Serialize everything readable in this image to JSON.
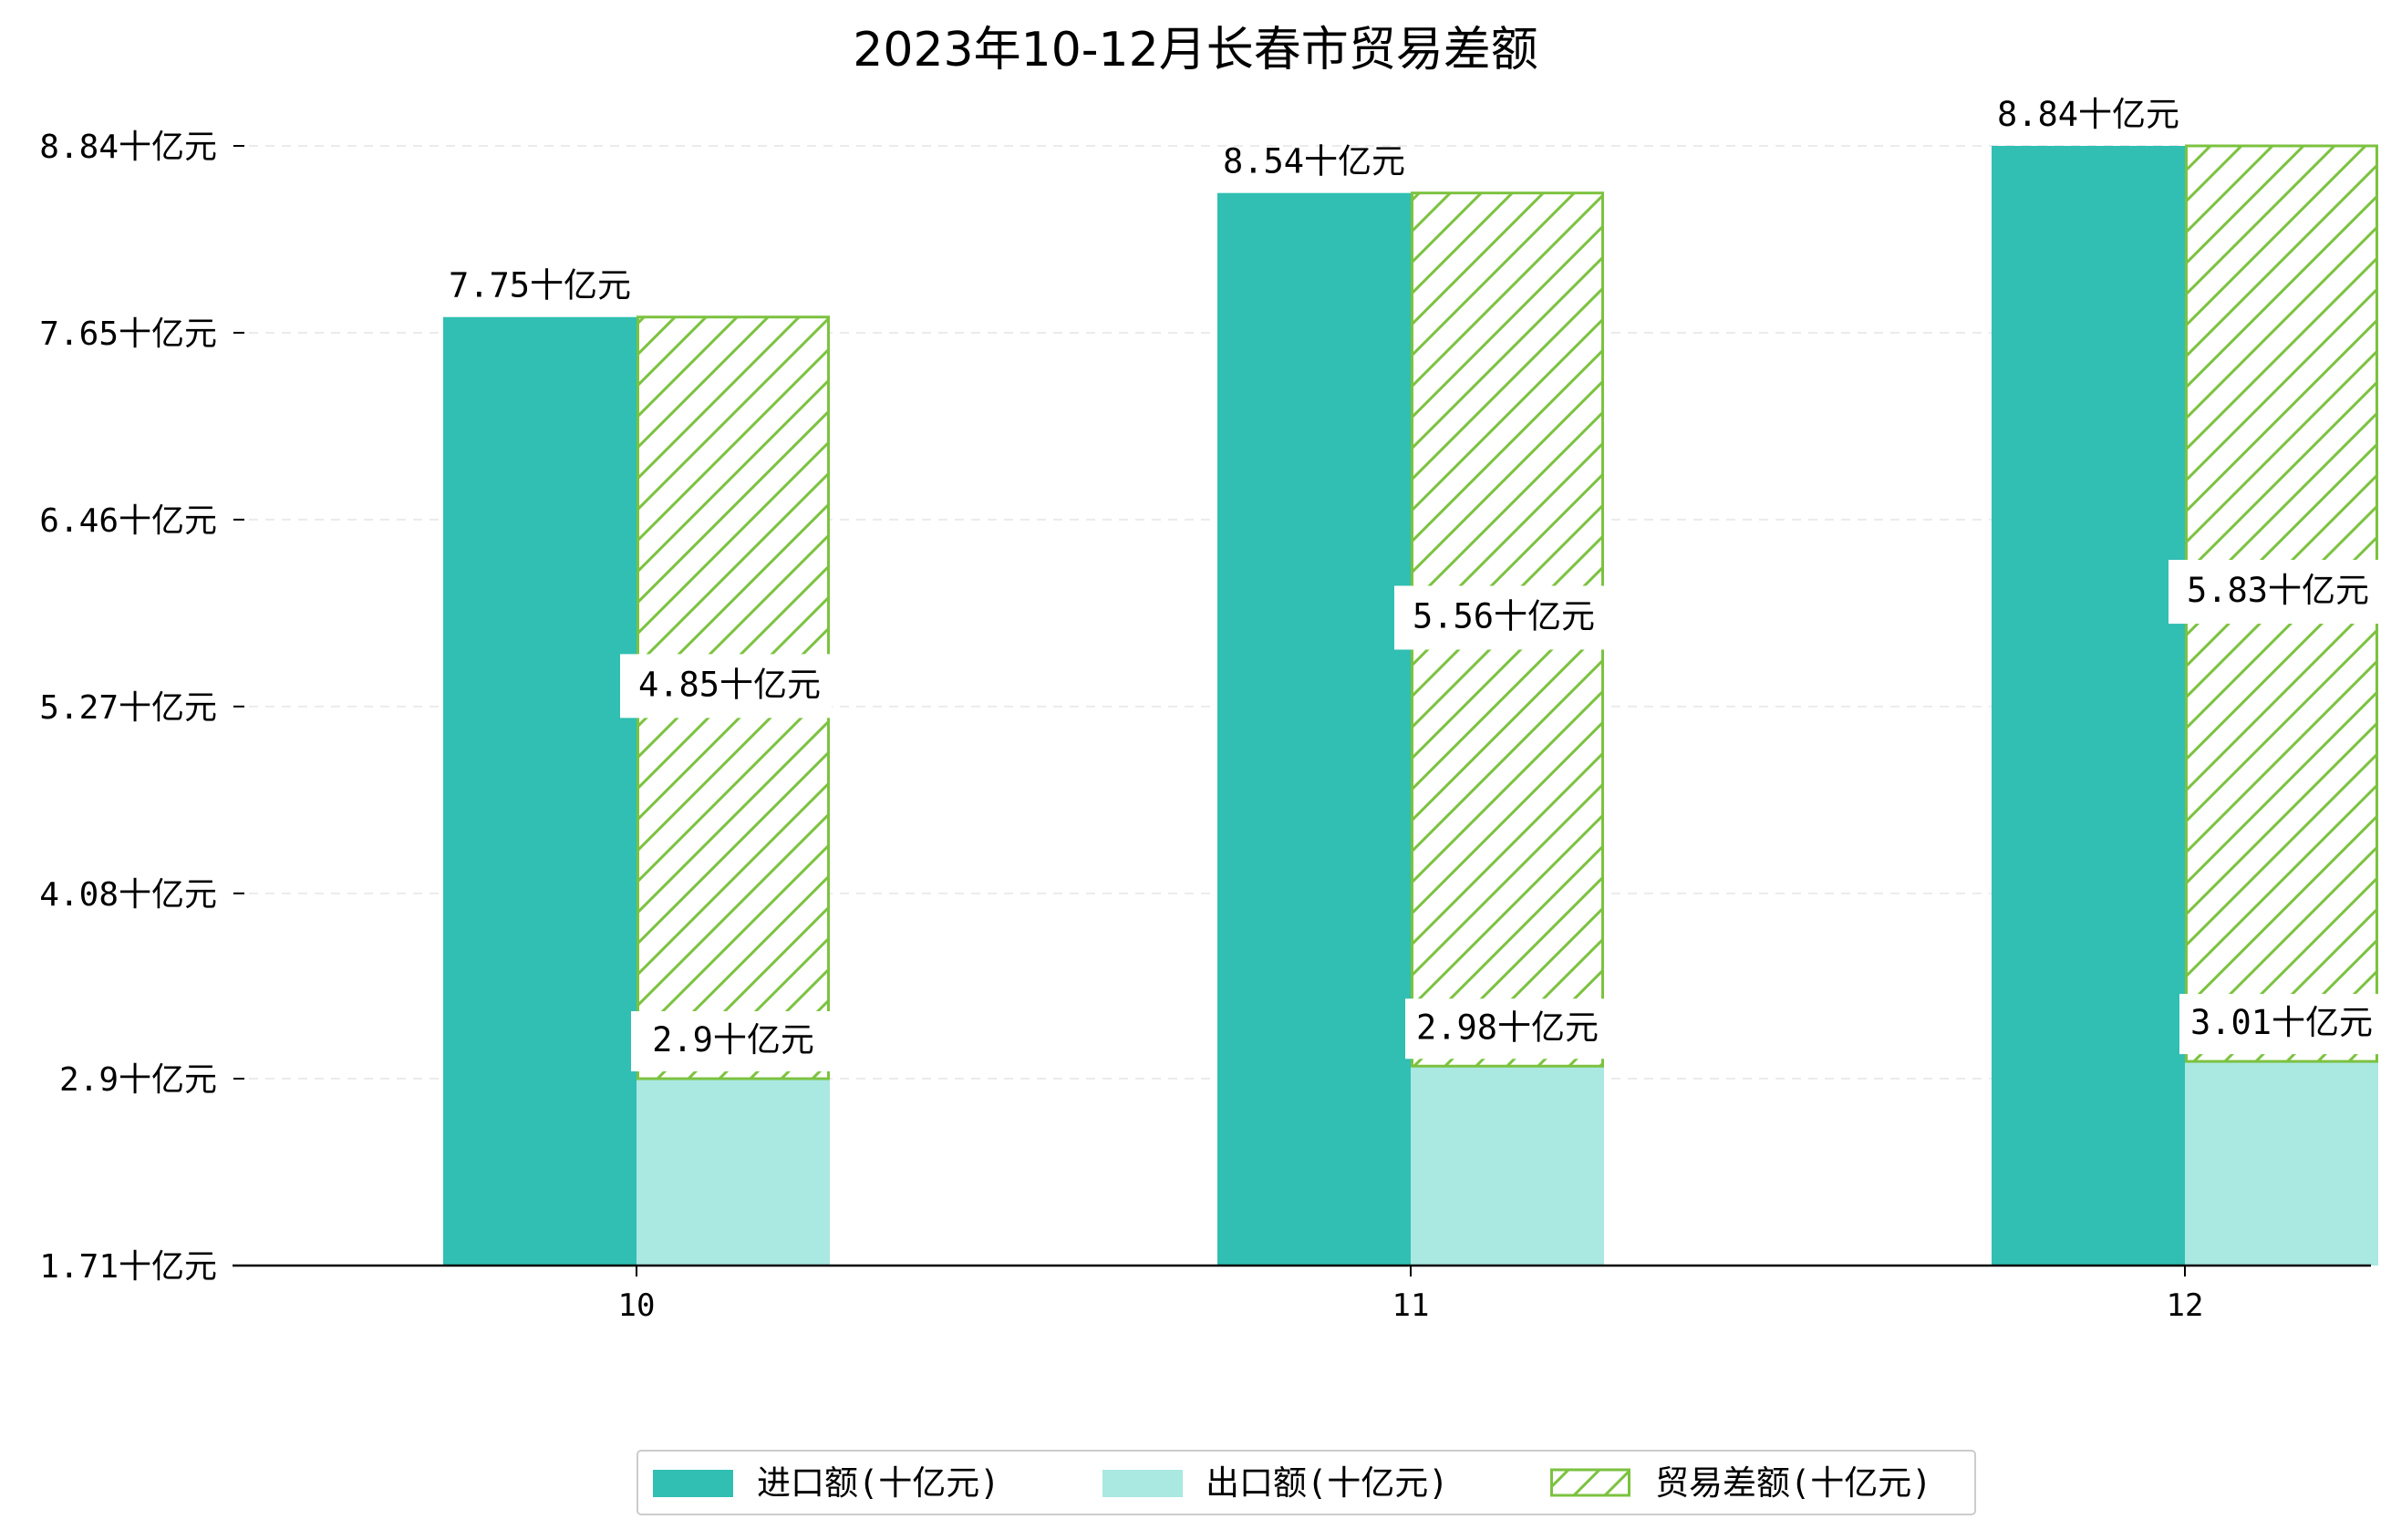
{
  "chart_data": {
    "type": "bar",
    "title": "2023年10-12月长春市贸易差额",
    "xlabel": "",
    "ylabel": "",
    "categories": [
      "10",
      "11",
      "12"
    ],
    "series": [
      {
        "name": "进口额(十亿元)",
        "values": [
          7.75,
          8.54,
          8.84
        ],
        "color": "#30bfb2",
        "labels": [
          "7.75十亿元",
          "8.54十亿元",
          "8.84十亿元"
        ]
      },
      {
        "name": "出口额(十亿元)",
        "values": [
          2.9,
          2.98,
          3.01
        ],
        "color": "#aae8e2",
        "labels": [
          "2.9十亿元",
          "2.98十亿元",
          "3.01十亿元"
        ]
      },
      {
        "name": "贸易差额(十亿元)",
        "values": [
          4.85,
          5.56,
          5.83
        ],
        "color": "#7cc240",
        "hatch": true,
        "labels": [
          "4.85十亿元",
          "5.56十亿元",
          "5.83十亿元"
        ]
      }
    ],
    "yticks": [
      "1.71十亿元",
      "2.9十亿元",
      "4.08十亿元",
      "5.27十亿元",
      "6.46十亿元",
      "7.65十亿元",
      "8.84十亿元"
    ],
    "ytick_values": [
      1.71,
      2.9,
      4.08,
      5.27,
      6.46,
      7.65,
      8.84
    ],
    "ylim": [
      1.71,
      8.84
    ],
    "grid": "horizontal dashed",
    "legend_position": "bottom-center"
  }
}
